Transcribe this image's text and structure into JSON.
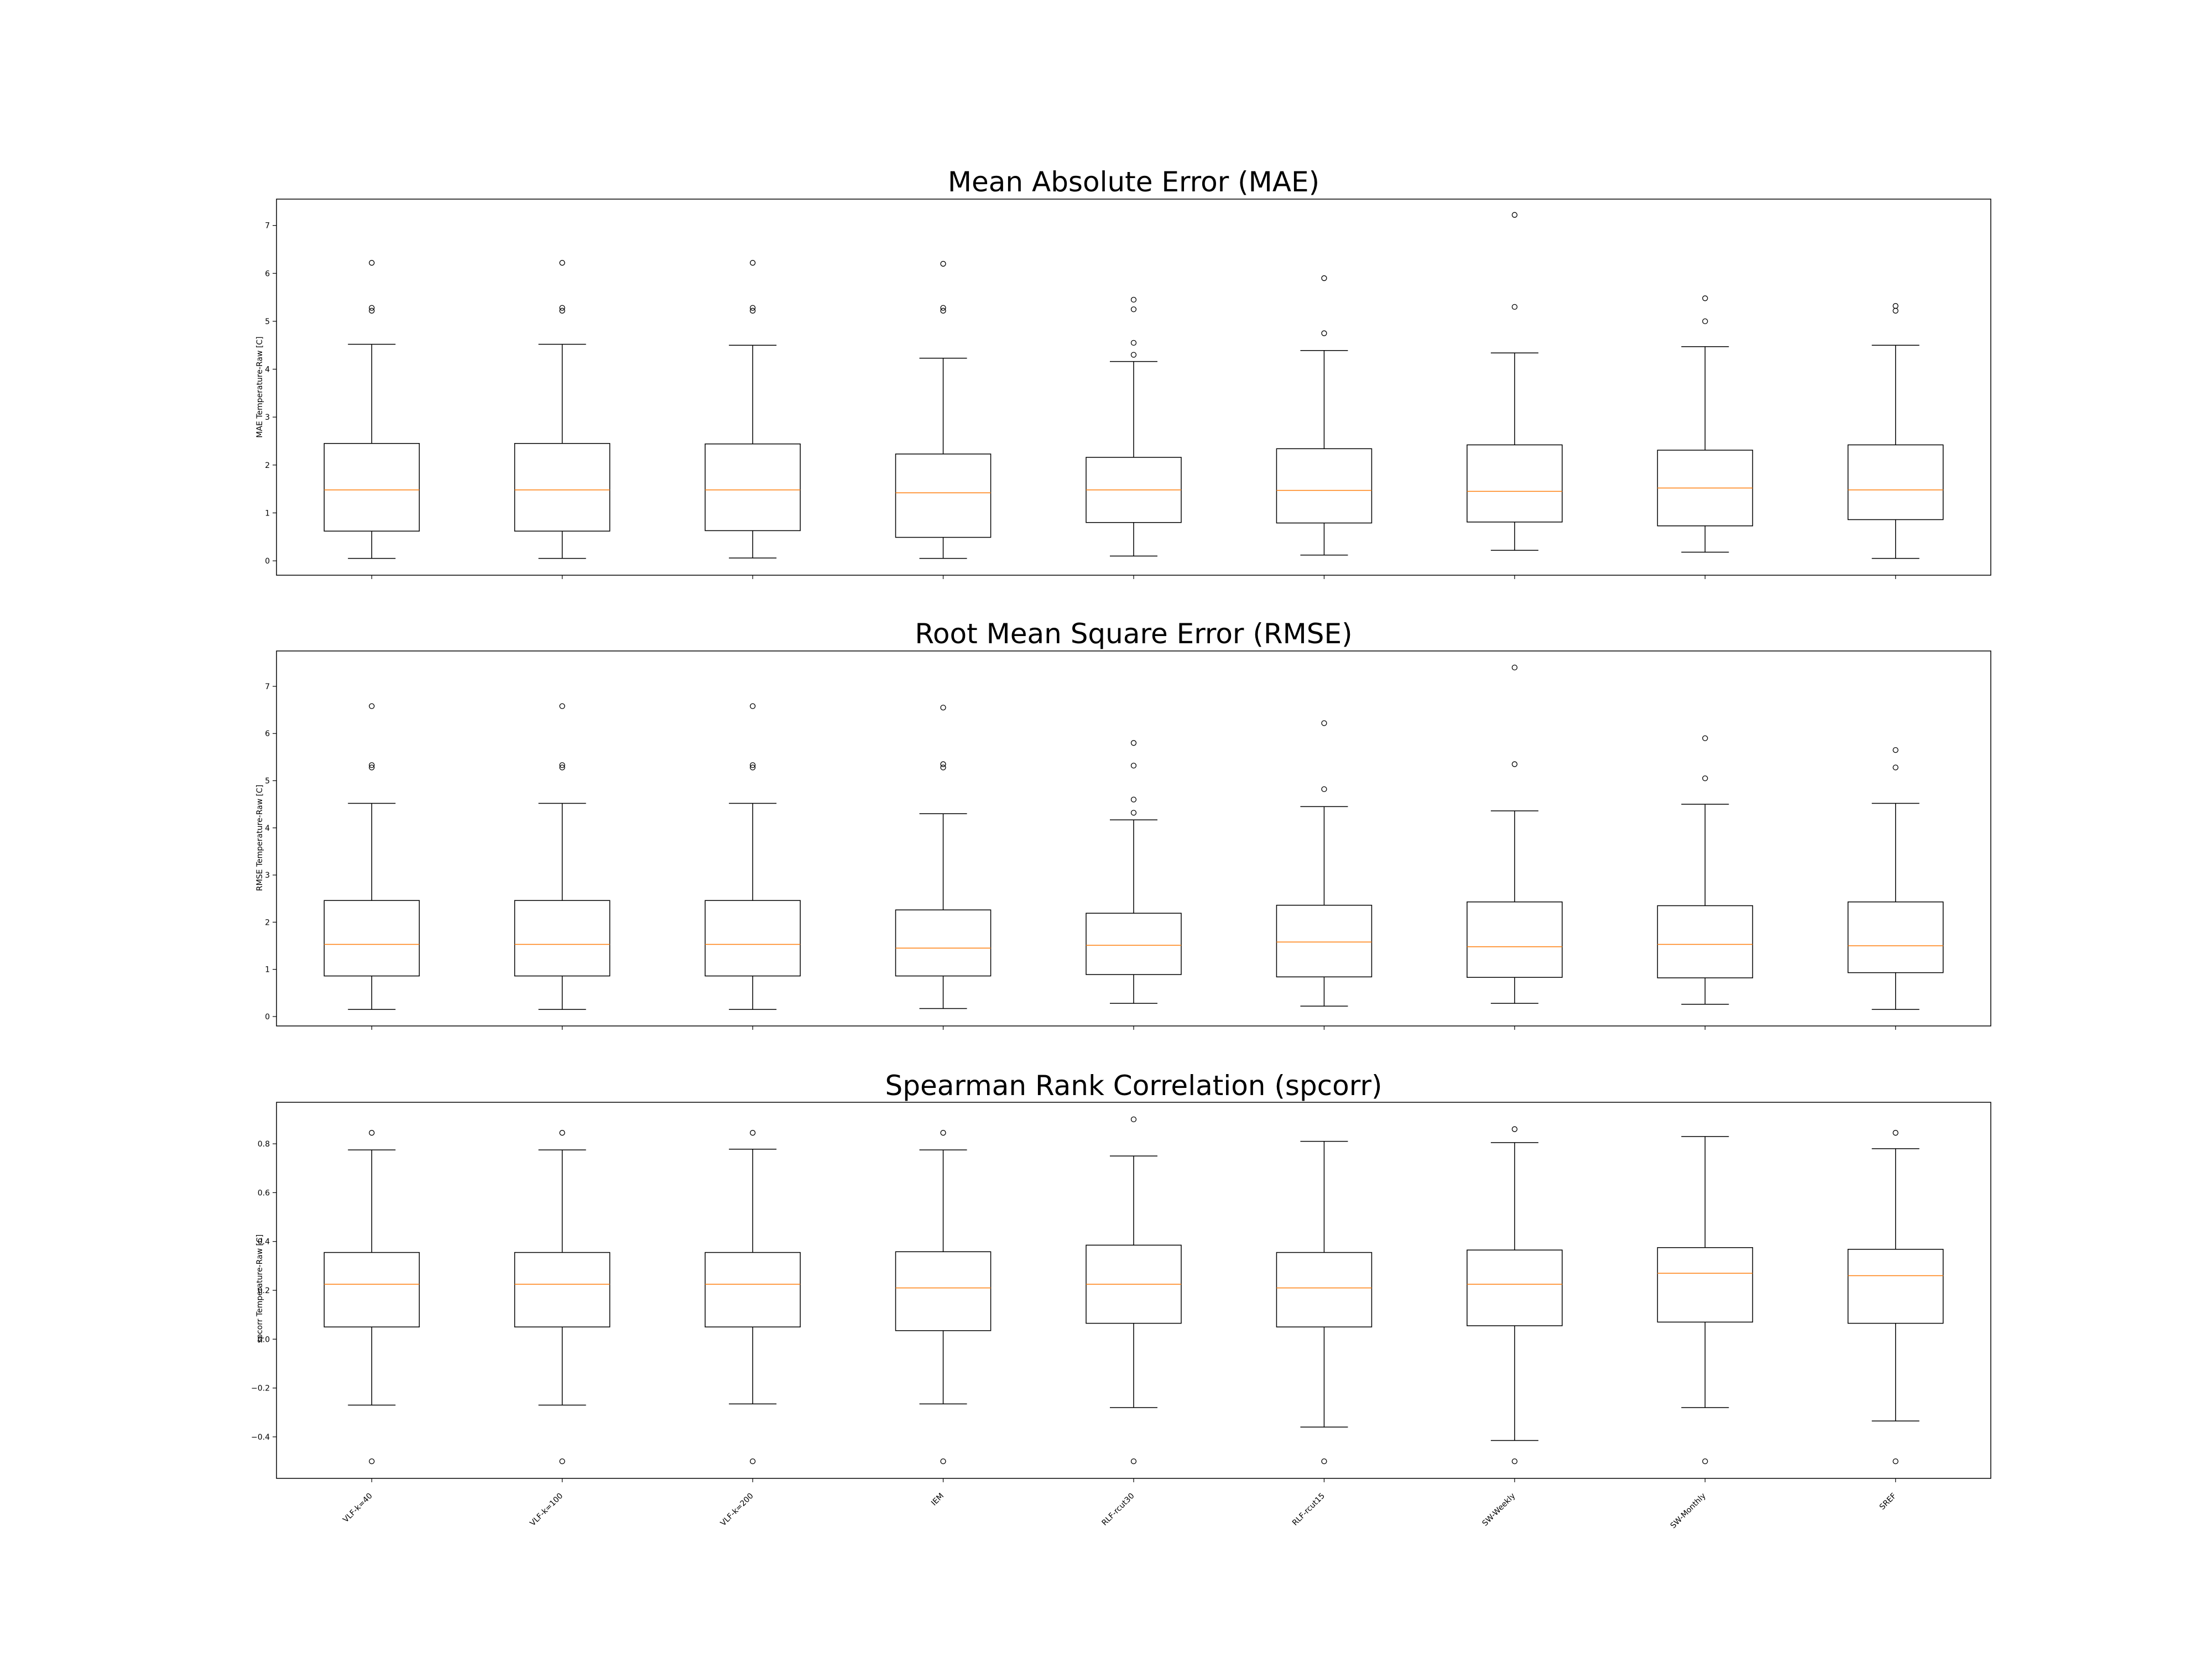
{
  "chart_data": [
    {
      "type": "box",
      "title": "Mean Absolute Error (MAE)",
      "ylabel": "MAE Temperature-Raw [C]",
      "xlabel": "",
      "ylim": [
        -0.3,
        7.55
      ],
      "yticks": [
        "0",
        "1",
        "2",
        "3",
        "4",
        "5",
        "6",
        "7"
      ],
      "ytick_values": [
        0,
        1,
        2,
        3,
        4,
        5,
        6,
        7
      ],
      "categories": [
        "VLF-k=40",
        "VLF-k=100",
        "VLF-k=200",
        "IEM",
        "RLF-rcut30",
        "RLF-rcut15",
        "SW-Weekly",
        "SW-Monthly",
        "SREF"
      ],
      "boxes": [
        {
          "whislo": 0.05,
          "q1": 0.62,
          "med": 1.48,
          "q3": 2.45,
          "whishi": 4.52,
          "fliers": [
            5.22,
            5.28,
            6.22
          ]
        },
        {
          "whislo": 0.05,
          "q1": 0.62,
          "med": 1.48,
          "q3": 2.45,
          "whishi": 4.52,
          "fliers": [
            5.22,
            5.28,
            6.22
          ]
        },
        {
          "whislo": 0.06,
          "q1": 0.63,
          "med": 1.48,
          "q3": 2.44,
          "whishi": 4.5,
          "fliers": [
            5.22,
            5.28,
            6.22
          ]
        },
        {
          "whislo": 0.05,
          "q1": 0.49,
          "med": 1.42,
          "q3": 2.23,
          "whishi": 4.23,
          "fliers": [
            5.22,
            5.28,
            6.2
          ]
        },
        {
          "whislo": 0.1,
          "q1": 0.8,
          "med": 1.48,
          "q3": 2.16,
          "whishi": 4.16,
          "fliers": [
            4.3,
            4.55,
            5.25,
            5.45
          ]
        },
        {
          "whislo": 0.12,
          "q1": 0.79,
          "med": 1.47,
          "q3": 2.34,
          "whishi": 4.39,
          "fliers": [
            4.75,
            5.9
          ]
        },
        {
          "whislo": 0.22,
          "q1": 0.81,
          "med": 1.45,
          "q3": 2.42,
          "whishi": 4.34,
          "fliers": [
            5.3,
            7.22
          ]
        },
        {
          "whislo": 0.18,
          "q1": 0.73,
          "med": 1.52,
          "q3": 2.31,
          "whishi": 4.47,
          "fliers": [
            5.0,
            5.48
          ]
        },
        {
          "whislo": 0.05,
          "q1": 0.86,
          "med": 1.48,
          "q3": 2.42,
          "whishi": 4.5,
          "fliers": [
            5.22,
            5.32
          ]
        }
      ]
    },
    {
      "type": "box",
      "title": "Root Mean Square Error (RMSE)",
      "ylabel": "RMSE Temperature-Raw [C]",
      "xlabel": "",
      "ylim": [
        -0.2,
        7.75
      ],
      "yticks": [
        "0",
        "1",
        "2",
        "3",
        "4",
        "5",
        "6",
        "7"
      ],
      "ytick_values": [
        0,
        1,
        2,
        3,
        4,
        5,
        6,
        7
      ],
      "categories": [
        "VLF-k=40",
        "VLF-k=100",
        "VLF-k=200",
        "IEM",
        "RLF-rcut30",
        "RLF-rcut15",
        "SW-Weekly",
        "SW-Monthly",
        "SREF"
      ],
      "boxes": [
        {
          "whislo": 0.15,
          "q1": 0.86,
          "med": 1.53,
          "q3": 2.46,
          "whishi": 4.52,
          "fliers": [
            5.28,
            5.33,
            6.58
          ]
        },
        {
          "whislo": 0.15,
          "q1": 0.86,
          "med": 1.53,
          "q3": 2.46,
          "whishi": 4.52,
          "fliers": [
            5.28,
            5.33,
            6.58
          ]
        },
        {
          "whislo": 0.15,
          "q1": 0.86,
          "med": 1.53,
          "q3": 2.46,
          "whishi": 4.52,
          "fliers": [
            5.28,
            5.33,
            6.58
          ]
        },
        {
          "whislo": 0.17,
          "q1": 0.86,
          "med": 1.45,
          "q3": 2.26,
          "whishi": 4.3,
          "fliers": [
            5.28,
            5.35,
            6.55
          ]
        },
        {
          "whislo": 0.28,
          "q1": 0.89,
          "med": 1.51,
          "q3": 2.19,
          "whishi": 4.17,
          "fliers": [
            4.32,
            4.6,
            5.32,
            5.8
          ]
        },
        {
          "whislo": 0.22,
          "q1": 0.84,
          "med": 1.58,
          "q3": 2.36,
          "whishi": 4.45,
          "fliers": [
            4.82,
            6.22
          ]
        },
        {
          "whislo": 0.28,
          "q1": 0.83,
          "med": 1.48,
          "q3": 2.43,
          "whishi": 4.36,
          "fliers": [
            5.35,
            7.4
          ]
        },
        {
          "whislo": 0.26,
          "q1": 0.82,
          "med": 1.53,
          "q3": 2.35,
          "whishi": 4.5,
          "fliers": [
            5.05,
            5.9
          ]
        },
        {
          "whislo": 0.15,
          "q1": 0.93,
          "med": 1.5,
          "q3": 2.43,
          "whishi": 4.52,
          "fliers": [
            5.28,
            5.65
          ]
        }
      ]
    },
    {
      "type": "box",
      "title": "Spearman Rank Correlation (spcorr)",
      "ylabel": "spcorr Temperature-Raw [C]",
      "xlabel": "",
      "ylim": [
        -0.57,
        0.97
      ],
      "yticks": [
        "−0.4",
        "−0.2",
        "0.0",
        "0.2",
        "0.4",
        "0.6",
        "0.8"
      ],
      "ytick_values": [
        -0.4,
        -0.2,
        0.0,
        0.2,
        0.4,
        0.6,
        0.8
      ],
      "categories": [
        "VLF-k=40",
        "VLF-k=100",
        "VLF-k=200",
        "IEM",
        "RLF-rcut30",
        "RLF-rcut15",
        "SW-Weekly",
        "SW-Monthly",
        "SREF"
      ],
      "boxes": [
        {
          "whislo": -0.27,
          "q1": 0.05,
          "med": 0.225,
          "q3": 0.355,
          "whishi": 0.775,
          "fliers": [
            -0.5,
            0.845
          ]
        },
        {
          "whislo": -0.27,
          "q1": 0.05,
          "med": 0.225,
          "q3": 0.355,
          "whishi": 0.775,
          "fliers": [
            -0.5,
            0.845
          ]
        },
        {
          "whislo": -0.265,
          "q1": 0.05,
          "med": 0.225,
          "q3": 0.355,
          "whishi": 0.778,
          "fliers": [
            -0.5,
            0.845
          ]
        },
        {
          "whislo": -0.265,
          "q1": 0.035,
          "med": 0.21,
          "q3": 0.358,
          "whishi": 0.775,
          "fliers": [
            -0.5,
            0.845
          ]
        },
        {
          "whislo": -0.28,
          "q1": 0.065,
          "med": 0.225,
          "q3": 0.385,
          "whishi": 0.75,
          "fliers": [
            -0.5,
            0.9
          ]
        },
        {
          "whislo": -0.36,
          "q1": 0.05,
          "med": 0.21,
          "q3": 0.355,
          "whishi": 0.81,
          "fliers": [
            -0.5
          ]
        },
        {
          "whislo": -0.415,
          "q1": 0.055,
          "med": 0.225,
          "q3": 0.365,
          "whishi": 0.805,
          "fliers": [
            -0.5,
            0.86
          ]
        },
        {
          "whislo": -0.28,
          "q1": 0.07,
          "med": 0.27,
          "q3": 0.375,
          "whishi": 0.83,
          "fliers": [
            -0.5
          ]
        },
        {
          "whislo": -0.335,
          "q1": 0.065,
          "med": 0.26,
          "q3": 0.368,
          "whishi": 0.78,
          "fliers": [
            -0.5,
            0.845
          ]
        }
      ]
    }
  ],
  "colors": {
    "box_line": "#000000",
    "median": "#ff7f0e",
    "axes": "#000000",
    "background": "#ffffff"
  }
}
